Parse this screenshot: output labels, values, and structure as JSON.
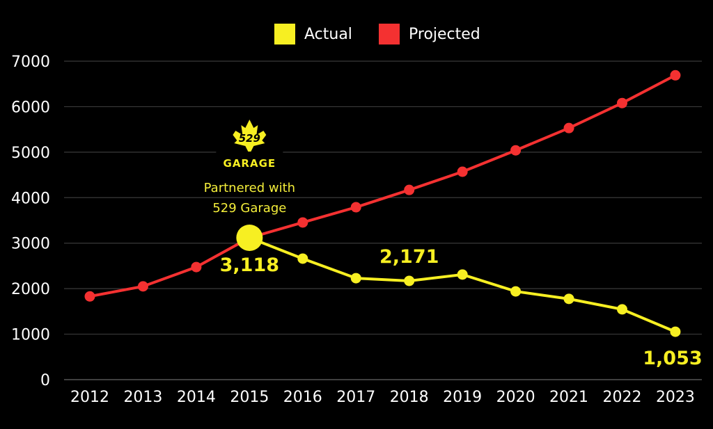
{
  "chart_data": {
    "type": "line",
    "title": "",
    "xlabel": "",
    "ylabel": "",
    "categories": [
      "2012",
      "2013",
      "2014",
      "2015",
      "2016",
      "2017",
      "2018",
      "2019",
      "2020",
      "2021",
      "2022",
      "2023"
    ],
    "ylim": [
      0,
      7000
    ],
    "yticks": [
      "0",
      "1000",
      "2000",
      "3000",
      "4000",
      "5000",
      "6000",
      "7000"
    ],
    "grid": true,
    "legend_position": "top",
    "series": [
      {
        "name": "Actual",
        "color": "#f7ef22",
        "values": [
          null,
          null,
          null,
          3118,
          2660,
          2230,
          2171,
          2310,
          1940,
          1775,
          1545,
          1053
        ]
      },
      {
        "name": "Projected",
        "color": "#f43131",
        "values": [
          1830,
          2050,
          2475,
          3118,
          3455,
          3790,
          4170,
          4570,
          5040,
          5530,
          6080,
          6690
        ]
      }
    ],
    "annotations": [
      {
        "label": "3,118",
        "category": "2015",
        "value": 3118
      },
      {
        "label": "2,171",
        "category": "2018",
        "value": 2171
      },
      {
        "label": "1,053",
        "category": "2023",
        "value": 1053
      }
    ],
    "callout": {
      "category": "2015",
      "lines": [
        "Partnered with",
        "529 Garage"
      ],
      "logo_text": [
        "529",
        "GARAGE"
      ]
    }
  }
}
